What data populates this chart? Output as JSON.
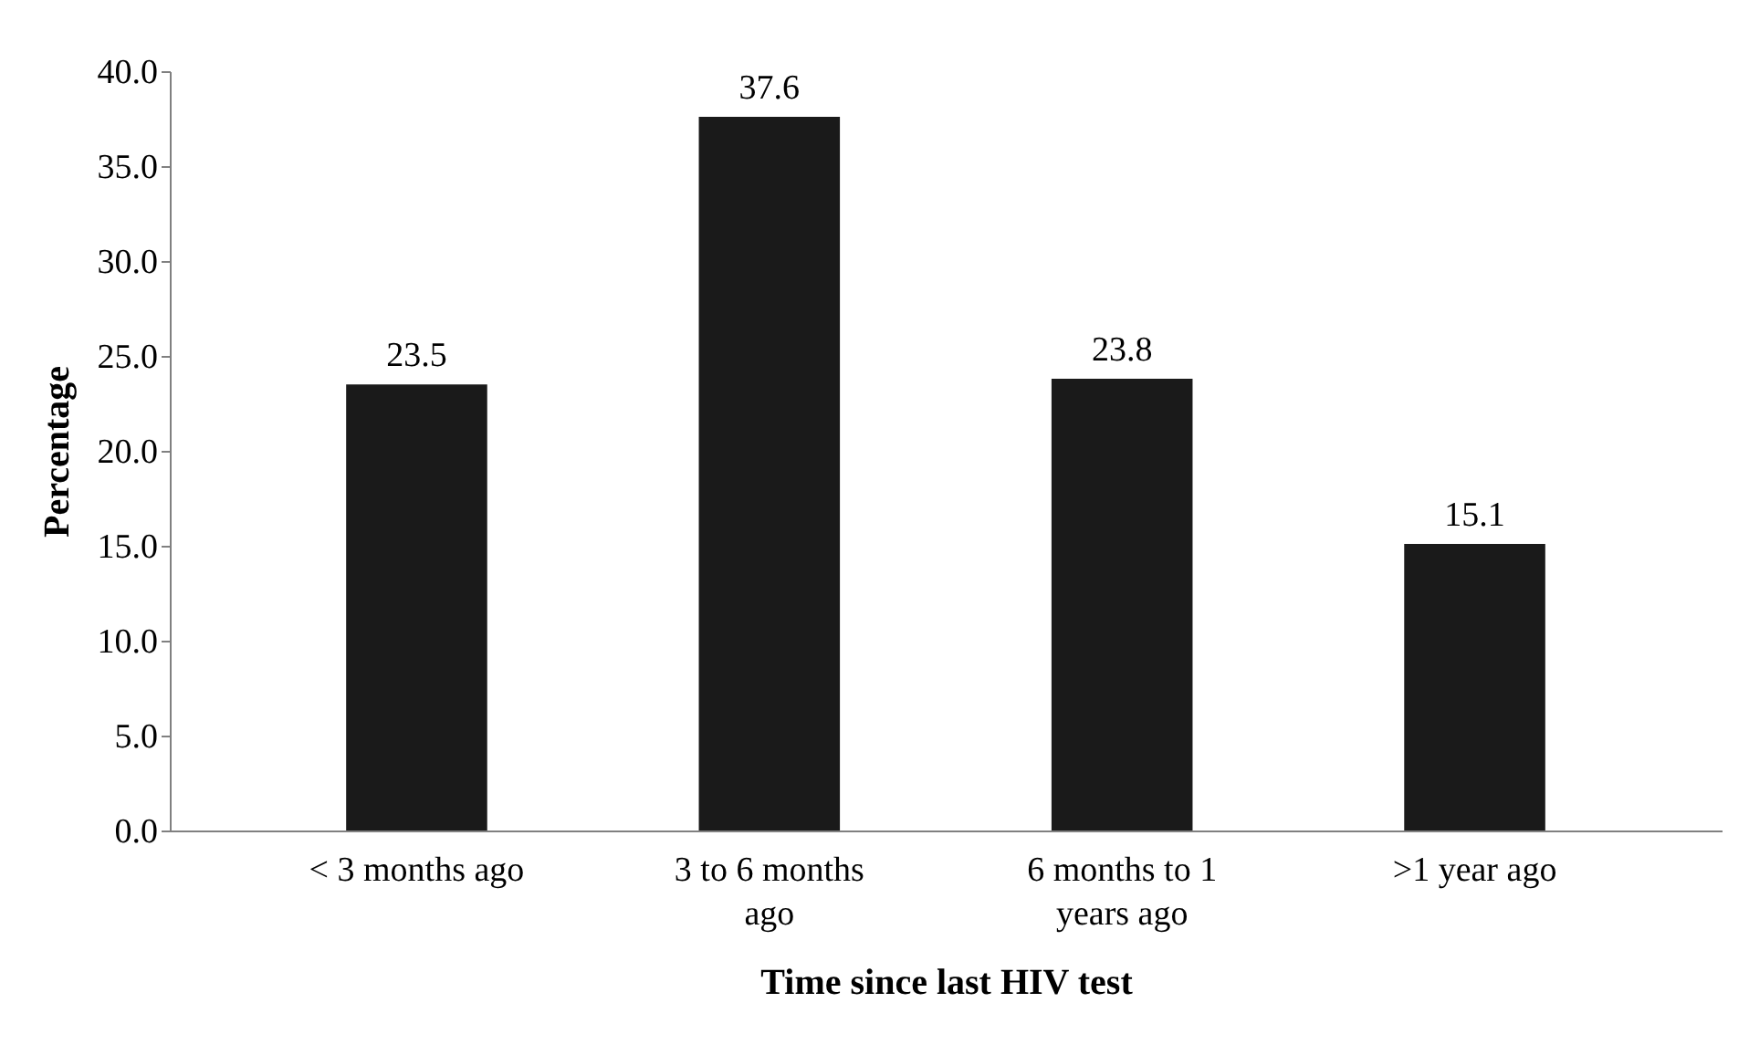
{
  "chart_data": {
    "type": "bar",
    "xlabel": "Time since last HIV test",
    "ylabel": "Percentage",
    "categories": [
      "< 3 months ago",
      "3 to 6 months ago",
      "6 months to 1 years ago",
      ">1 year ago"
    ],
    "values": [
      23.5,
      37.6,
      23.8,
      15.1
    ],
    "color": "#1a1a1a",
    "ylim": [
      0,
      40
    ],
    "yticks": [
      {
        "value": 0,
        "label": "0.0"
      },
      {
        "value": 5,
        "label": "5.0"
      },
      {
        "value": 10,
        "label": "10.0"
      },
      {
        "value": 15,
        "label": "15.0"
      },
      {
        "value": 20,
        "label": "20.0"
      },
      {
        "value": 25,
        "label": "25.0"
      },
      {
        "value": 30,
        "label": "30.0"
      },
      {
        "value": 35,
        "label": "35.0"
      },
      {
        "value": 40,
        "label": "40.0"
      }
    ],
    "data_labels": true,
    "grid": false
  }
}
